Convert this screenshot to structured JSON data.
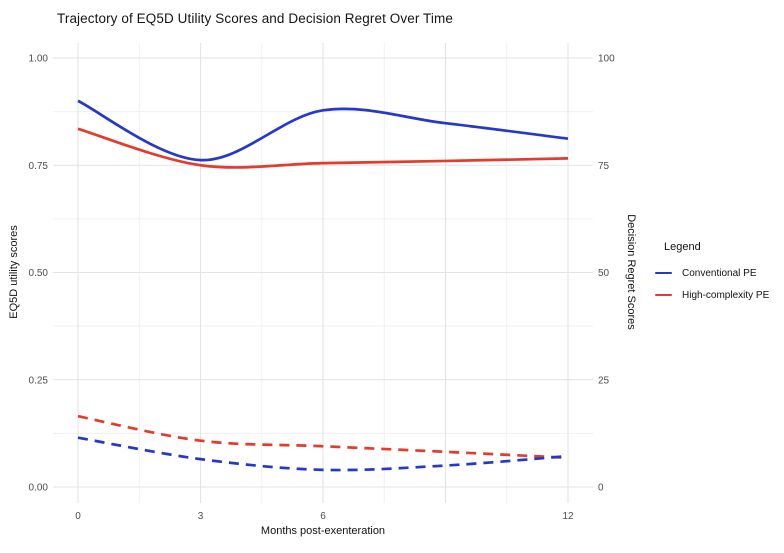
{
  "chart_data": {
    "type": "line",
    "title": "Trajectory of EQ5D Utility Scores and Decision Regret Over Time",
    "xlabel": "Months post-exenteration",
    "ylabel_left": "EQ5D utility scores",
    "ylabel_right": "Decision Regret Scores",
    "x": [
      0,
      3,
      6,
      9,
      12
    ],
    "xlim": [
      0,
      12
    ],
    "x_major": [
      0,
      3,
      6,
      9,
      12
    ],
    "x_minor": [
      1.5,
      4.5,
      7.5,
      10.5
    ],
    "x_ticks": [
      {
        "v": 0,
        "label": "0"
      },
      {
        "v": 3,
        "label": "3"
      },
      {
        "v": 6,
        "label": "6"
      },
      {
        "v": 12,
        "label": "12"
      }
    ],
    "ylim_left": [
      0,
      1
    ],
    "y_left_ticks": [
      {
        "v": 0,
        "label": "0.00"
      },
      {
        "v": 0.25,
        "label": "0.25"
      },
      {
        "v": 0.5,
        "label": "0.50"
      },
      {
        "v": 0.75,
        "label": "0.75"
      },
      {
        "v": 1,
        "label": "1.00"
      }
    ],
    "y_left_minor": [
      0.125,
      0.375,
      0.625,
      0.875
    ],
    "ylim_right": [
      0,
      100
    ],
    "y_right_ticks": [
      {
        "v": 0,
        "label": "0"
      },
      {
        "v": 25,
        "label": "25"
      },
      {
        "v": 50,
        "label": "50"
      },
      {
        "v": 75,
        "label": "75"
      },
      {
        "v": 100,
        "label": "100"
      }
    ],
    "grid": true,
    "legend_position": "right",
    "series": [
      {
        "name": "Conventional PE",
        "measure": "EQ5D utility score",
        "axis": "left",
        "line": "solid",
        "color": "#2438cc",
        "values": [
          0.9,
          0.762,
          0.878,
          0.848,
          0.812
        ]
      },
      {
        "name": "High-complexity PE",
        "measure": "EQ5D utility score",
        "axis": "left",
        "line": "solid",
        "color": "#e43b2c",
        "values": [
          0.835,
          0.75,
          0.755,
          0.76,
          0.766
        ]
      },
      {
        "name": "Conventional PE",
        "measure": "Decision regret score",
        "axis": "right",
        "line": "dashed",
        "color": "#2438cc",
        "values": [
          11.5,
          6.5,
          4.0,
          5.0,
          7.2
        ]
      },
      {
        "name": "High-complexity PE",
        "measure": "Decision regret score",
        "axis": "right",
        "line": "dashed",
        "color": "#e43b2c",
        "values": [
          16.5,
          10.8,
          9.5,
          8.2,
          6.8
        ]
      }
    ],
    "legend": {
      "title": "Legend",
      "entries": [
        {
          "label": "Conventional PE",
          "color": "#2438cc"
        },
        {
          "label": "High-complexity PE",
          "color": "#e43b2c"
        }
      ]
    }
  }
}
